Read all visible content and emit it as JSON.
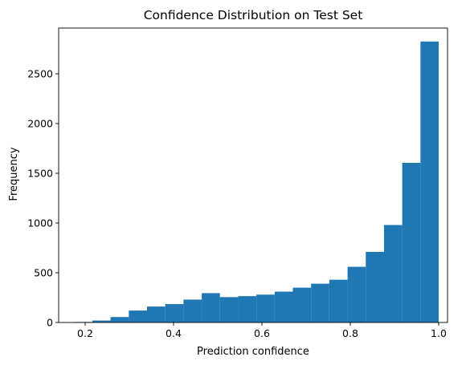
{
  "chart_data": {
    "type": "bar",
    "title": "Confidence Distribution on Test Set",
    "xlabel": "Prediction confidence",
    "ylabel": "Frequency",
    "xlim": [
      0.14,
      1.02
    ],
    "ylim": [
      0,
      2960
    ],
    "xticks": [
      "0.2",
      "0.4",
      "0.6",
      "0.8",
      "1.0"
    ],
    "yticks": [
      "0",
      "500",
      "1000",
      "1500",
      "2000",
      "2500"
    ],
    "bar_color": "#1f77b4",
    "grid": false,
    "bins": [
      {
        "x0": 0.175,
        "x1": 0.2163,
        "count": 5
      },
      {
        "x0": 0.2163,
        "x1": 0.2575,
        "count": 20
      },
      {
        "x0": 0.2575,
        "x1": 0.2988,
        "count": 55
      },
      {
        "x0": 0.2988,
        "x1": 0.34,
        "count": 120
      },
      {
        "x0": 0.34,
        "x1": 0.3813,
        "count": 160
      },
      {
        "x0": 0.3813,
        "x1": 0.4225,
        "count": 185
      },
      {
        "x0": 0.4225,
        "x1": 0.4638,
        "count": 230
      },
      {
        "x0": 0.4638,
        "x1": 0.505,
        "count": 295
      },
      {
        "x0": 0.505,
        "x1": 0.5463,
        "count": 255
      },
      {
        "x0": 0.5463,
        "x1": 0.5875,
        "count": 265
      },
      {
        "x0": 0.5875,
        "x1": 0.6288,
        "count": 280
      },
      {
        "x0": 0.6288,
        "x1": 0.67,
        "count": 310
      },
      {
        "x0": 0.67,
        "x1": 0.7113,
        "count": 350
      },
      {
        "x0": 0.7113,
        "x1": 0.7525,
        "count": 390
      },
      {
        "x0": 0.7525,
        "x1": 0.7938,
        "count": 430
      },
      {
        "x0": 0.7938,
        "x1": 0.835,
        "count": 560
      },
      {
        "x0": 0.835,
        "x1": 0.8763,
        "count": 710
      },
      {
        "x0": 0.8763,
        "x1": 0.9175,
        "count": 980
      },
      {
        "x0": 0.9175,
        "x1": 0.9588,
        "count": 1605
      },
      {
        "x0": 0.9588,
        "x1": 1.0,
        "count": 2825
      }
    ]
  }
}
